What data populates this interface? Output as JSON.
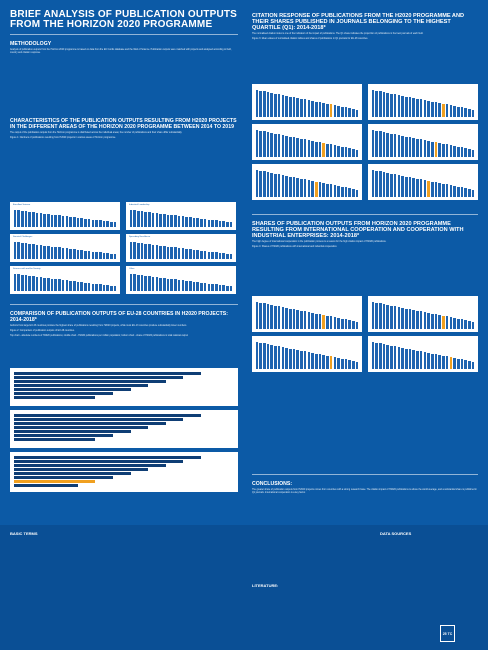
{
  "poster": {
    "title": "BRIEF ANALYSIS OF PUBLICATION OUTPUTS FROM THE HORIZON 2020 PROGRAMME",
    "methodology": {
      "heading": "METHODOLOGY",
      "text": "Analysis of publication outputs from the Horizon 2020 programme is based on data from the EC Cordis database and the Web of Science. Publication outputs were matched with projects and analysed according to field, country and citation response."
    },
    "characteristics": {
      "heading": "CHARACTERISTICS OF THE PUBLICATION OUTPUTS RESULTING FROM H2020 PROJECTS IN THE DIFFERENT AREAS OF THE HORIZON 2020 PROGRAMME BETWEEN 2014 TO 2019",
      "text": "The output of the publication outputs from the Horizon programme is distributed across the individual areas; the number of publications and their share differ substantially.",
      "figure_caption": "Figure 1: Numbers of publications resulting from H2020 projects in various areas of Horizon programme.",
      "panel_titles": [
        "Excellent Science",
        "Industrial Leadership",
        "Societal Challenges",
        "Spreading Excellence",
        "Science with and for Society",
        "Other"
      ]
    },
    "comparison": {
      "heading": "COMPARISON OF PUBLICATION OUTPUTS OF EU-28 COUNTRIES IN H2020 PROJECTS: 2014-2018*",
      "text": "Authors from large EU-15 countries produce the highest share of publications resulting from H2020 projects, while most EU-13 countries produce substantially lower numbers.",
      "figure_caption": "Figure 2: Comparison of publication outputs of EU-28 countries.",
      "legend": "Top chart - absolute numbers of H2020 publications; middle chart - H2020 publications per million population; bottom chart - share of H2020 publications in total national output"
    },
    "citation": {
      "heading": "CITATION RESPONSE OF PUBLICATIONS FROM THE H2020 PROGRAMME AND THEIR SHARES PUBLISHED IN JOURNALS BELONGING TO THE HIGHEST QUARTILE (Q1): 2014-2018*",
      "text": "The normalised citation index is one of the indicators of the impact of publications. The Q1 share indicates the proportion of publications in the best journals of each field.",
      "figure_caption": "Figure 3: Mean values of normalised citation indices and shares of publications in Q1 journals for EU-28 countries."
    },
    "shares": {
      "heading": "SHARES OF PUBLICATION OUTPUTS FROM HORIZON 2020 PROGRAMME RESULTING FROM INTERNATIONAL COOPERATION AND COOPERATION WITH INDUSTRIAL ENTERPRISES: 2014-2018*",
      "text": "The high degree of international cooperation in the publication process is a reason for the high citation impact of H2020 publications.",
      "figure_caption": "Figure 4: Shares of H2020 publications with international and industrial cooperation."
    },
    "conclusions": {
      "heading": "CONCLUSIONS:",
      "text": "The greater share of publication outputs from H2020 projects comes from countries with a strong research base. The citation impact of H2020 publications is above the world average, and a substantial share is published in Q1 journals. International cooperation is a key factor."
    },
    "footer": {
      "basic_terms": "BASIC TERMS",
      "literature": "LITERATURE:",
      "data_sources": "DATA SOURCES",
      "logo_text": "25 TC"
    }
  }
}
